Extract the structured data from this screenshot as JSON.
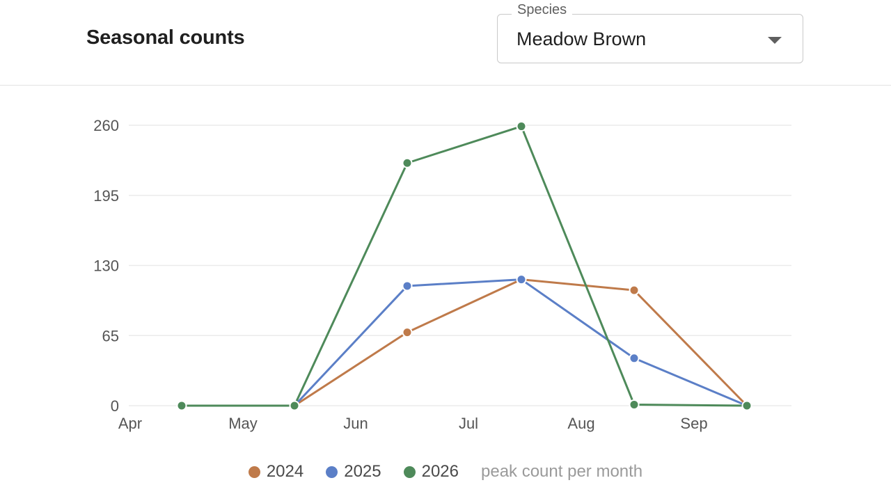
{
  "header": {
    "title": "Seasonal counts",
    "species_label": "Species",
    "species_value": "Meadow Brown"
  },
  "legend_note": "peak count per month",
  "colors": {
    "2024": "#bf7a4a",
    "2025": "#5b7fc7",
    "2026": "#4e8a5a",
    "grid": "#ebebeb"
  },
  "chart_data": {
    "type": "line",
    "title": "",
    "xlabel": "",
    "ylabel": "",
    "x_ticks": [
      "Apr",
      "May",
      "Jun",
      "Jul",
      "Aug",
      "Sep"
    ],
    "y_ticks": [
      0,
      65,
      130,
      195,
      260
    ],
    "ylim": [
      0,
      260
    ],
    "grid": true,
    "legend_position": "bottom",
    "points_x": [
      "Apr-15",
      "May-15",
      "Jun-15",
      "Jul-15",
      "Aug-15",
      "Sep-15"
    ],
    "series": [
      {
        "name": "2024",
        "x": [
          1,
          2,
          3,
          4,
          5
        ],
        "values": [
          0,
          68,
          117,
          107,
          0
        ]
      },
      {
        "name": "2025",
        "x": [
          1,
          2,
          3,
          4,
          5
        ],
        "values": [
          0,
          111,
          117,
          44,
          0
        ]
      },
      {
        "name": "2026",
        "x": [
          0,
          1,
          2,
          3,
          4,
          5
        ],
        "values": [
          0,
          0,
          225,
          259,
          1,
          0
        ]
      }
    ]
  }
}
